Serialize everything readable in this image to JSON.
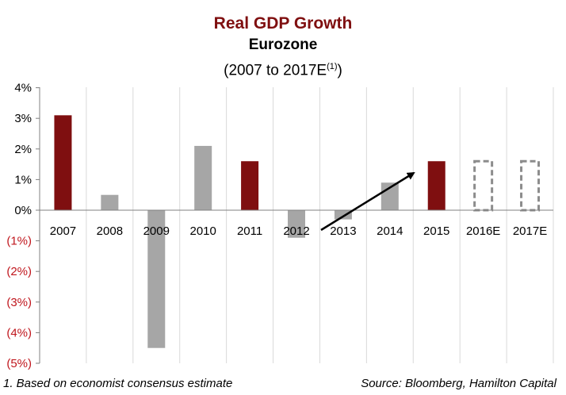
{
  "chart_data": {
    "type": "bar",
    "title": "Real GDP Growth",
    "subtitle": "Eurozone",
    "subtitle2_main": "(2007 to 2017E",
    "subtitle2_sup": "(1)",
    "subtitle2_close": ")",
    "categories": [
      "2007",
      "2008",
      "2009",
      "2010",
      "2011",
      "2012",
      "2013",
      "2014",
      "2015",
      "2016E",
      "2017E"
    ],
    "values": [
      3.1,
      0.5,
      -4.5,
      2.1,
      1.6,
      -0.9,
      -0.3,
      0.9,
      1.6,
      null,
      null
    ],
    "highlighted": [
      true,
      false,
      false,
      false,
      true,
      false,
      false,
      false,
      true,
      false,
      false
    ],
    "estimate_placeholder": [
      false,
      false,
      false,
      false,
      false,
      false,
      false,
      false,
      false,
      true,
      true
    ],
    "placeholder_value": 1.6,
    "ylim": [
      -5,
      4
    ],
    "yticks": [
      4,
      3,
      2,
      1,
      0,
      -1,
      -2,
      -3,
      -4,
      -5
    ],
    "ytick_labels": [
      "4%",
      "3%",
      "2%",
      "1%",
      "0%",
      "(1%)",
      "(2%)",
      "(3%)",
      "(4%)",
      "(5%)"
    ],
    "ytick_negative_color": "#c0161d",
    "grid": "vertical",
    "annotation": "arrow from 2012 to 2015 indicating recovery trend",
    "colors": {
      "highlight": "#7f0f10",
      "normal": "#a6a6a6",
      "placeholder": "#8c8c8c",
      "grid": "#d9d9d9",
      "axis": "#808080"
    }
  },
  "footnote": "1. Based on economist consensus estimate",
  "source": "Source: Bloomberg, Hamilton Capital"
}
